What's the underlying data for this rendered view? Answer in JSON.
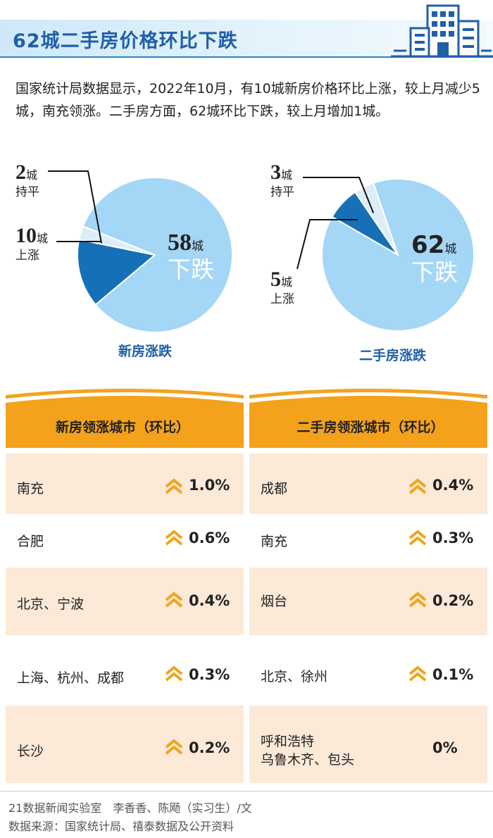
{
  "title": "62城二手房价格环比下跌",
  "intro": "国家统计局数据显示，2022年10月，有10城新房价格环比上涨，较上月减少5城，南充领涨。二手房方面，62城环比下跌，较上月增加1城。",
  "colors": {
    "light": "#a4d6f5",
    "dark": "#1670b8",
    "pale": "#dcedf8",
    "orange": "#f4a21c",
    "row": "#fce9d8",
    "chevron": "#f0a51a"
  },
  "chart_data": [
    {
      "type": "pie",
      "title": "新房涨跌",
      "unit": "城",
      "slices": [
        {
          "label": "下跌",
          "value": 58
        },
        {
          "label": "上涨",
          "value": 10
        },
        {
          "label": "持平",
          "value": 2
        }
      ]
    },
    {
      "type": "pie",
      "title": "二手房涨跌",
      "unit": "城",
      "slices": [
        {
          "label": "下跌",
          "value": 62
        },
        {
          "label": "上涨",
          "value": 5
        },
        {
          "label": "持平",
          "value": 3
        }
      ]
    },
    {
      "type": "table",
      "title": "新房领涨城市（环比）",
      "rows": [
        {
          "city": "南充",
          "value": "1.0%",
          "arrow": true
        },
        {
          "city": "合肥",
          "value": "0.6%",
          "arrow": true
        },
        {
          "city": "北京、宁波",
          "value": "0.4%",
          "arrow": true
        },
        {
          "city": "上海、杭州、成都",
          "value": "0.3%",
          "arrow": true
        },
        {
          "city": "长沙",
          "value": "0.2%",
          "arrow": true
        }
      ]
    },
    {
      "type": "table",
      "title": "二手房领涨城市（环比）",
      "rows": [
        {
          "city": "成都",
          "value": "0.4%",
          "arrow": true
        },
        {
          "city": "南充",
          "value": "0.3%",
          "arrow": true
        },
        {
          "city": "烟台",
          "value": "0.2%",
          "arrow": true
        },
        {
          "city": "北京、徐州",
          "value": "0.1%",
          "arrow": true
        },
        {
          "city": "呼和浩特\n乌鲁木齐、包头",
          "value": "0%",
          "arrow": false
        }
      ]
    }
  ],
  "footer": {
    "credit": "21数据新闻实验室　李香香、陈飏（实习生）/文",
    "source": "数据来源：国家统计局、禧泰数据及公开资料"
  }
}
